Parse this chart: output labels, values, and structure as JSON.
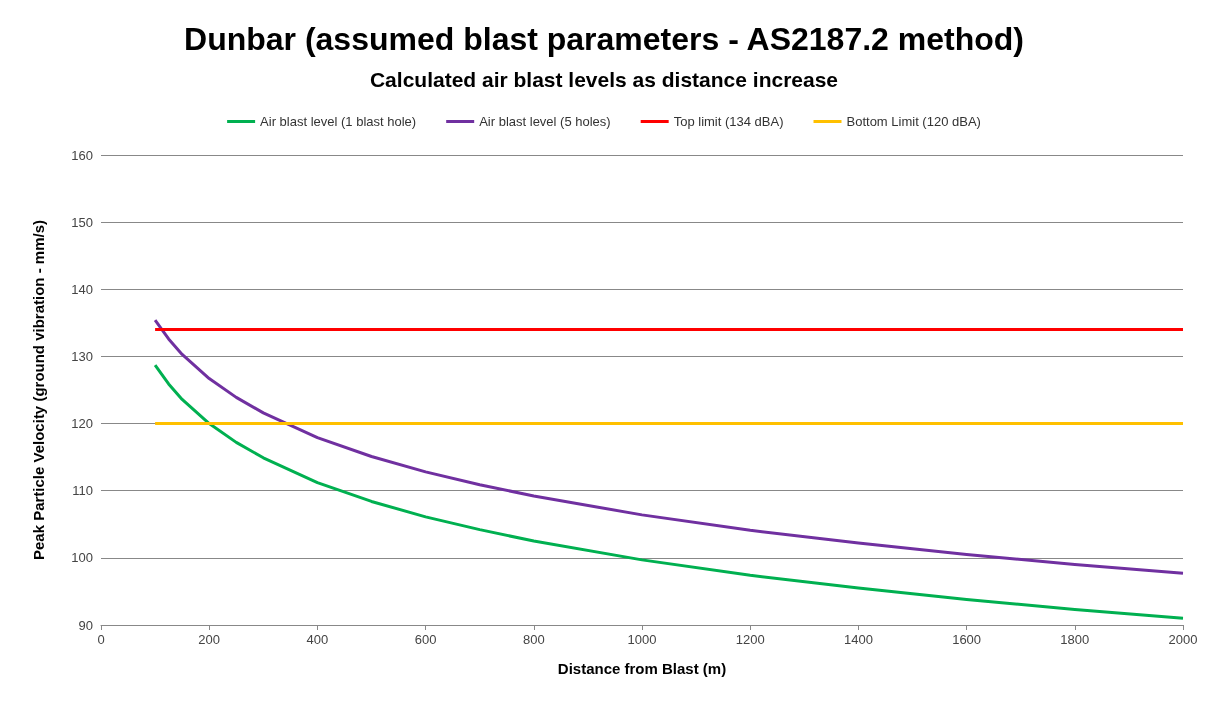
{
  "chart_data": {
    "type": "line",
    "title": "Dunbar (assumed blast parameters - AS2187.2 method)",
    "subtitle": "Calculated air blast levels as distance increase",
    "xlabel": "Distance from Blast (m)",
    "ylabel": "Peak Particle Velocity (ground vibration - mm/s)",
    "x": [
      100,
      125,
      150,
      200,
      250,
      300,
      400,
      500,
      600,
      700,
      800,
      1000,
      1200,
      1400,
      1600,
      1800,
      2000
    ],
    "series": [
      {
        "name": "Air blast level (1 blast hole)",
        "color": "#00b050",
        "values": [
          128.7,
          125.9,
          123.6,
          120.0,
          117.2,
          114.9,
          111.2,
          108.4,
          106.1,
          104.2,
          102.5,
          99.7,
          97.4,
          95.5,
          93.8,
          92.3,
          91.0
        ]
      },
      {
        "name": "Air blast level (5 holes)",
        "color": "#7030a0",
        "values": [
          135.4,
          132.6,
          130.3,
          126.7,
          123.9,
          121.6,
          117.9,
          115.1,
          112.8,
          110.9,
          109.2,
          106.4,
          104.1,
          102.2,
          100.5,
          99.0,
          97.7
        ]
      },
      {
        "name": "Top limit (134 dBA)",
        "color": "#ff0000",
        "values": [
          134,
          134,
          134,
          134,
          134,
          134,
          134,
          134,
          134,
          134,
          134,
          134,
          134,
          134,
          134,
          134,
          134
        ]
      },
      {
        "name": "Bottom Limit (120 dBA)",
        "color": "#ffc000",
        "values": [
          120,
          120,
          120,
          120,
          120,
          120,
          120,
          120,
          120,
          120,
          120,
          120,
          120,
          120,
          120,
          120,
          120
        ]
      }
    ],
    "xlim": [
      0,
      2000
    ],
    "xticks": [
      0,
      200,
      400,
      600,
      800,
      1000,
      1200,
      1400,
      1600,
      1800,
      2000
    ],
    "ylim": [
      90,
      160
    ],
    "yticks": [
      90,
      100,
      110,
      120,
      130,
      140,
      150,
      160
    ],
    "grid": "y",
    "legend": "top",
    "marker": "none",
    "line_style": "solid"
  }
}
